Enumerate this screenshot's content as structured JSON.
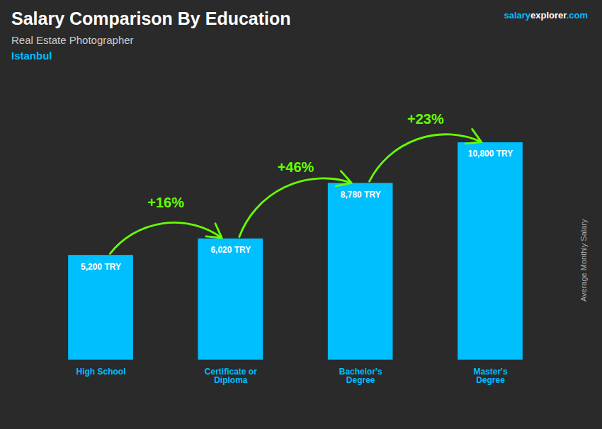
{
  "chart_data": {
    "type": "bar",
    "title": "Salary Comparison By Education",
    "subtitle": "Real Estate Photographer",
    "location": "Istanbul",
    "brand": [
      "salary",
      "explorer",
      ".com"
    ],
    "ylabel": "Average Monthly Salary",
    "categories": [
      "High School",
      "Certificate or\nDiploma",
      "Bachelor's\nDegree",
      "Master's\nDegree"
    ],
    "values": [
      5200,
      6020,
      8780,
      10800
    ],
    "value_labels": [
      "5,200 TRY",
      "6,020 TRY",
      "8,780 TRY",
      "10,800 TRY"
    ],
    "data_labels": true,
    "annotations": [
      "+16%",
      "+46%",
      "+23%"
    ],
    "color": "#00BFFF",
    "ylim": [
      0,
      14000
    ],
    "tick_labels": "x",
    "grid": false
  }
}
